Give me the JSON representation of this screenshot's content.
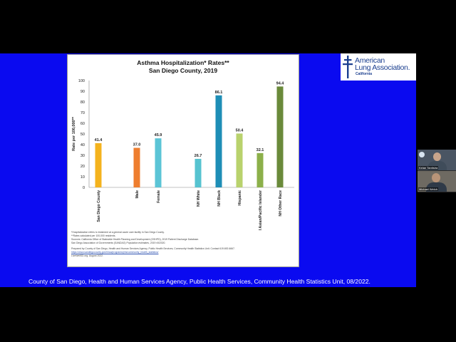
{
  "chart_data": {
    "type": "bar",
    "title": "Asthma Hospitalization* Rates**",
    "subtitle": "San Diego County, 2019",
    "ylabel": "Rate per 100,000**",
    "xlabel": "",
    "ylim": [
      0,
      100
    ],
    "yticks": [
      0,
      10,
      20,
      30,
      40,
      50,
      60,
      70,
      80,
      90,
      100
    ],
    "grid": false,
    "categories": [
      "San Diego County",
      "Male",
      "Female",
      "NH White",
      "NH Black",
      "Hispanic",
      "NH Asian/Pacific Islander",
      "NH Other Race"
    ],
    "values": [
      41.4,
      37.0,
      45.9,
      26.7,
      86.1,
      50.4,
      32.1,
      94.4
    ],
    "value_labels": [
      "41.4",
      "37.0",
      "45.9",
      "26.7",
      "86.1",
      "50.4",
      "32.1",
      "94.4"
    ],
    "colors": [
      "#f4b31e",
      "#ee7e2f",
      "#5bc4d6",
      "#56c3d0",
      "#1e8eb6",
      "#b9d26d",
      "#8cb04a",
      "#6a8a3a"
    ]
  },
  "footnotes": [
    "*Hospitalization refers to treatment at a general acute care facility in San Diego County.",
    "**Rates calculated per 100,000 residents.",
    "Sources: California Office of Statewide Health Planning and Development (OSHPD), 2019 Patient Discharge Database.",
    "San Diego Association of Governments (SANDAG) Population estimates, 2019 v5/2020.",
    "Prepared by County of San Diego, Health and Human Services Agency, Public Health Services, Community Health Statistics Unit. Contact 619.692.6667.",
    "https://www.sandiegocounty.gov/hhsa/programs/phs/community_health_statistics/",
    "LiveWellSD.org. August 2022."
  ],
  "logo": {
    "line1": "American",
    "line2": "Lung Association.",
    "sub": "California"
  },
  "caption": "County of San Diego, Health and Human Services Agency, Public Health Services, Community Health Statistics Unit, 08/2022.",
  "participants": [
    "Kelan Tantisira",
    "Michael Welch"
  ],
  "colors": {
    "slide_bg": "#0a0af0",
    "page_bg": "#000000",
    "logo_blue": "#1b3f8f"
  }
}
